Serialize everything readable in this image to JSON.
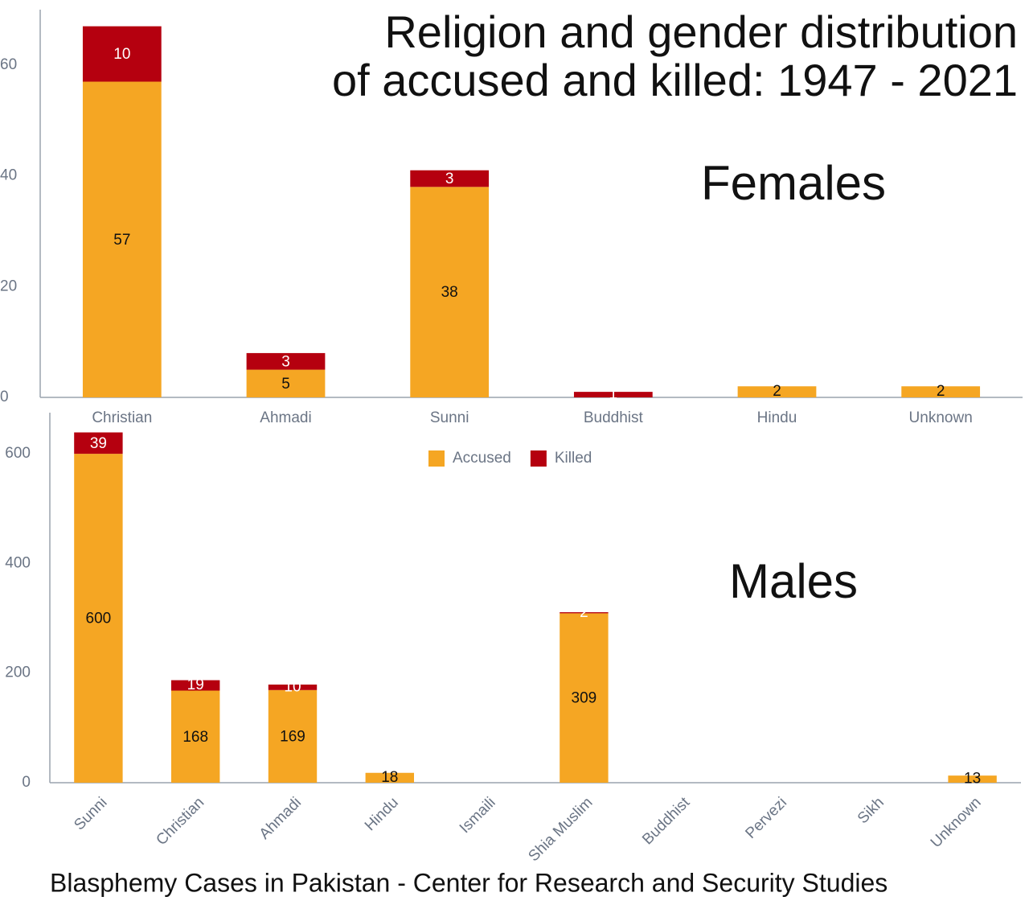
{
  "chart_data": [
    {
      "type": "bar",
      "stacked": true,
      "title": "Religion and gender distribution\nof accused and killed: 1947 - 2021",
      "annotation": "Females",
      "categories": [
        "Christian",
        "Ahmadi",
        "Sunni",
        "Buddhist",
        "Hindu",
        "Unknown"
      ],
      "series": [
        {
          "color": "#f5a623",
          "values": [
            57,
            5,
            38,
            0,
            2,
            2
          ]
        },
        {
          "color": "#b5000f",
          "values": [
            10,
            3,
            3,
            1,
            0,
            0
          ]
        }
      ],
      "ylim": [
        0,
        70
      ],
      "yticks": [
        0,
        20,
        40,
        60
      ]
    },
    {
      "type": "bar",
      "stacked": true,
      "annotation": "Males",
      "categories": [
        "Sunni",
        "Christian",
        "Ahmadi",
        "Hindu",
        "Ismaili",
        "Shia Muslim",
        "Buddhist",
        "Pervezi",
        "Sikh",
        "Unknown"
      ],
      "series": [
        {
          "name": "Accused",
          "color": "#f5a623",
          "values": [
            600,
            168,
            169,
            18,
            null,
            309,
            null,
            null,
            null,
            13
          ]
        },
        {
          "name": "Killed",
          "color": "#b5000f",
          "values": [
            39,
            19,
            10,
            0,
            null,
            2,
            null,
            null,
            null,
            0
          ]
        }
      ],
      "ylim": [
        0,
        675
      ],
      "yticks": [
        0,
        200,
        400,
        600
      ],
      "legend": "top"
    }
  ],
  "footer": "Blasphemy Cases in Pakistan - Center for Research and Security Studies"
}
